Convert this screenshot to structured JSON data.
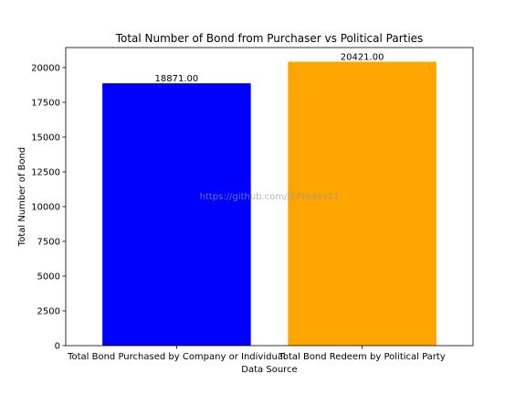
{
  "chart_data": {
    "type": "bar",
    "title": "Total Number of Bond from Purchaser vs Political Parties",
    "xlabel": "Data Source",
    "ylabel": "Total Number of Bond",
    "categories": [
      "Total Bond Purchased by Company or Individual",
      "Total Bond Redeem by Political Party"
    ],
    "values": [
      18871,
      20421
    ],
    "value_labels": [
      "18871.00",
      "20421.00"
    ],
    "colors": [
      "#0000ff",
      "#ffa500"
    ],
    "ylim": [
      0,
      21442
    ],
    "yticks": [
      0,
      2500,
      5000,
      7500,
      10000,
      12500,
      15000,
      17500,
      20000
    ],
    "grid": false,
    "legend": "none",
    "watermark": "https://github.com/iSPYadav01"
  }
}
